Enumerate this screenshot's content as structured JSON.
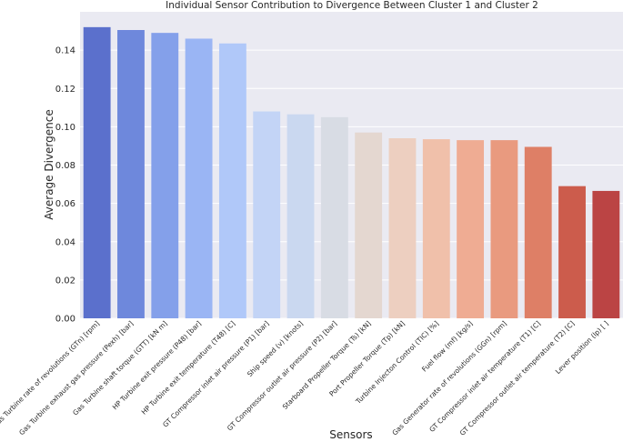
{
  "chart_data": {
    "type": "bar",
    "title": "Individual Sensor Contribution to Divergence Between Cluster 1 and Cluster 2",
    "xlabel": "Sensors",
    "ylabel": "Average Divergence",
    "ylim": [
      0,
      0.16
    ],
    "yticks": [
      "0.00",
      "0.02",
      "0.04",
      "0.06",
      "0.08",
      "0.10",
      "0.12",
      "0.14"
    ],
    "grid": true,
    "categories": [
      "Gas Turbine rate of revolutions (GTn) [rpm]",
      "Gas Turbine exhaust gas pressure (Pexh) [bar]",
      "Gas Turbine shaft torque (GTT) [kN m]",
      "HP Turbine exit pressure (P48) [bar]",
      "HP Turbine exit temperature (T48) [C]",
      "GT Compressor inlet air pressure (P1) [bar]",
      "Ship speed (v) [knots]",
      "GT Compressor outlet air pressure (P2) [bar]",
      "Starboard Propeller Torque (Ts) [kN]",
      "Port Propeller Torque (Tp) [kN]",
      "Turbine Injecton Control (TIC) [%]",
      "Fuel flow (mf) [kg/s]",
      "Gas Generator rate of revolutions (GGn) [rpm]",
      "GT Compressor inlet air temperature (T1) [C]",
      "GT Compressor outlet air temperature (T2) [C]",
      "Lever position (lp) [ ]"
    ],
    "values": [
      0.152,
      0.1505,
      0.149,
      0.146,
      0.1435,
      0.108,
      0.1065,
      0.105,
      0.097,
      0.094,
      0.0935,
      0.093,
      0.093,
      0.0895,
      0.069,
      0.0665
    ],
    "colors": [
      "#5b70cc",
      "#6e88dc",
      "#84a0ea",
      "#9ab5f4",
      "#b0c8f9",
      "#c3d4f6",
      "#cad8f0",
      "#d8dce4",
      "#e4d7d0",
      "#edcfc0",
      "#f0c0aa",
      "#efac93",
      "#e99a7f",
      "#de7f66",
      "#cc5c4c",
      "#bb4444"
    ]
  }
}
